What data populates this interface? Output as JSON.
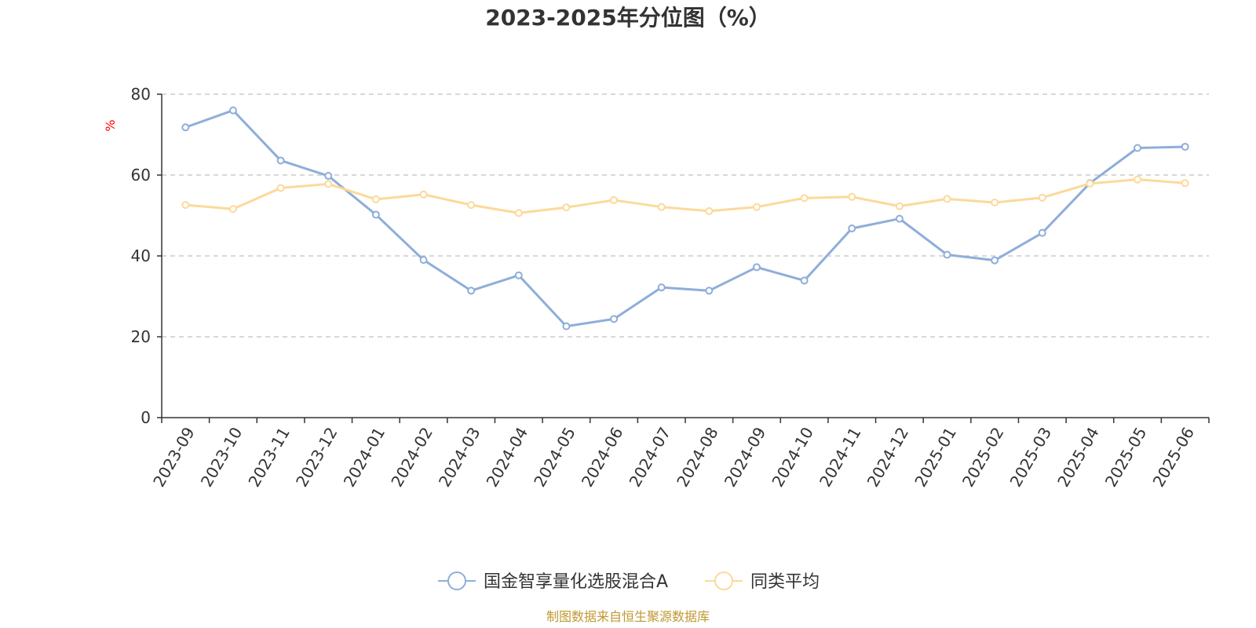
{
  "chart_data": {
    "type": "line",
    "title": "2023-2025年分位图（%）",
    "ylabel": "%",
    "xlabel": "",
    "ylim": [
      0,
      80
    ],
    "yticks": [
      0,
      20,
      40,
      60,
      80
    ],
    "grid": true,
    "legend_position": "bottom",
    "categories": [
      "2023-09",
      "2023-10",
      "2023-11",
      "2023-12",
      "2024-01",
      "2024-02",
      "2024-03",
      "2024-04",
      "2024-05",
      "2024-06",
      "2024-07",
      "2024-08",
      "2024-09",
      "2024-10",
      "2024-11",
      "2024-12",
      "2025-01",
      "2025-02",
      "2025-03",
      "2025-04",
      "2025-05",
      "2025-06"
    ],
    "series": [
      {
        "name": "国金智享量化选股混合A",
        "color": "#8eaed9",
        "values": [
          71.8,
          76.0,
          63.6,
          59.8,
          50.2,
          39.0,
          31.4,
          35.2,
          22.6,
          24.4,
          32.2,
          31.4,
          37.2,
          33.9,
          46.8,
          49.2,
          40.3,
          38.9,
          45.7,
          58.0,
          66.7,
          67.0
        ]
      },
      {
        "name": "同类平均",
        "color": "#fcd99a",
        "values": [
          52.6,
          51.6,
          56.8,
          57.8,
          54.0,
          55.2,
          52.6,
          50.6,
          52.0,
          53.8,
          52.1,
          51.1,
          52.1,
          54.3,
          54.6,
          52.3,
          54.1,
          53.2,
          54.4,
          57.9,
          58.9,
          58.0
        ]
      }
    ],
    "source_note": "制图数据来自恒生聚源数据库"
  }
}
